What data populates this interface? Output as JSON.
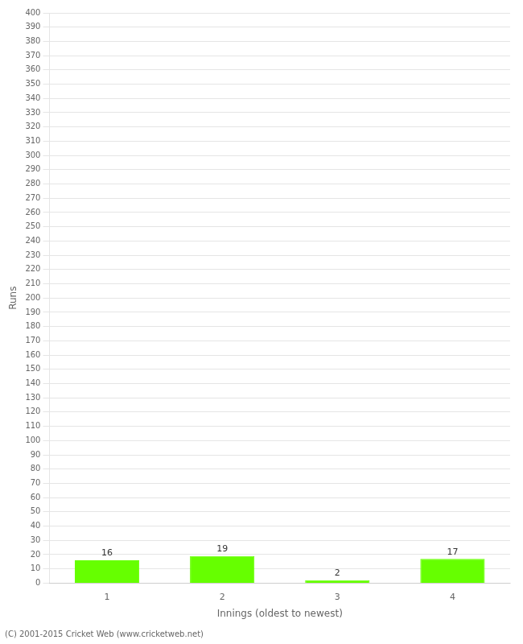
{
  "chart_data": {
    "type": "bar",
    "categories": [
      "1",
      "2",
      "3",
      "4"
    ],
    "values": [
      16,
      19,
      2,
      17
    ],
    "color": "#66ff00",
    "xlabel": "Innings (oldest to newest)",
    "ylabel": "Runs",
    "ylim": [
      0,
      400
    ],
    "yticks": [
      0,
      10,
      20,
      30,
      40,
      50,
      60,
      70,
      80,
      90,
      100,
      110,
      120,
      130,
      140,
      150,
      160,
      170,
      180,
      190,
      200,
      210,
      220,
      230,
      240,
      250,
      260,
      270,
      280,
      290,
      300,
      310,
      320,
      330,
      340,
      350,
      360,
      370,
      380,
      390,
      400
    ],
    "grid": true,
    "data_labels": true,
    "annotations": [
      "(C) 2001-2015 Cricket Web (www.cricketweb.net)"
    ]
  }
}
